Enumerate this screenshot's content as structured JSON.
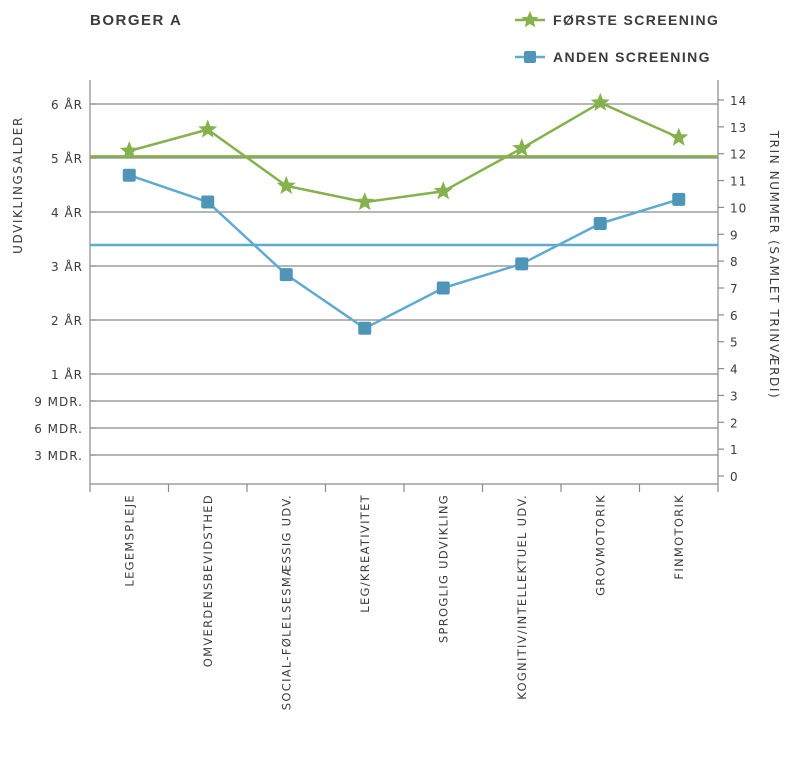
{
  "chart_data": {
    "type": "line",
    "title": "BORGER A",
    "ylabel": "UDVIKLINGSALDER",
    "y2label": "TRIN NUMMER (SAMLET TRINVÆRDI)",
    "y_ticks": [
      "3 MDR.",
      "6 MDR.",
      "9 MDR.",
      "1 ÅR",
      "2 ÅR",
      "3 ÅR",
      "4 ÅR",
      "5 ÅR",
      "6 ÅR"
    ],
    "y2_ticks": [
      "0",
      "1",
      "2",
      "3",
      "4",
      "5",
      "6",
      "7",
      "8",
      "9",
      "10",
      "11",
      "12",
      "13",
      "14"
    ],
    "ylim_right": [
      0,
      14
    ],
    "categories": [
      "LEGEMSPLEJE",
      "OMVERDENSBEVIDSTHED",
      "SOCIAL-FØLELSESMÆSSIG UDV.",
      "LEG/KREATIVITET",
      "SPROGLIG UDVIKLING",
      "KOGNITIV/INTELLEKTUEL UDV.",
      "GROVMOTORIK",
      "FINMOTORIK"
    ],
    "series": [
      {
        "name": "FØRSTE SCREENING",
        "color": "#86b24e",
        "marker": "star",
        "values": [
          12.1,
          12.9,
          10.8,
          10.2,
          10.6,
          12.2,
          13.9,
          12.6
        ],
        "reference": 11.9
      },
      {
        "name": "ANDEN SCREENING",
        "color": "#5fabd0",
        "marker": "square",
        "values": [
          11.2,
          10.2,
          7.5,
          5.5,
          7.0,
          7.9,
          9.4,
          10.3
        ],
        "reference": 8.6
      }
    ],
    "grid": true,
    "legend_position": "top-right"
  }
}
